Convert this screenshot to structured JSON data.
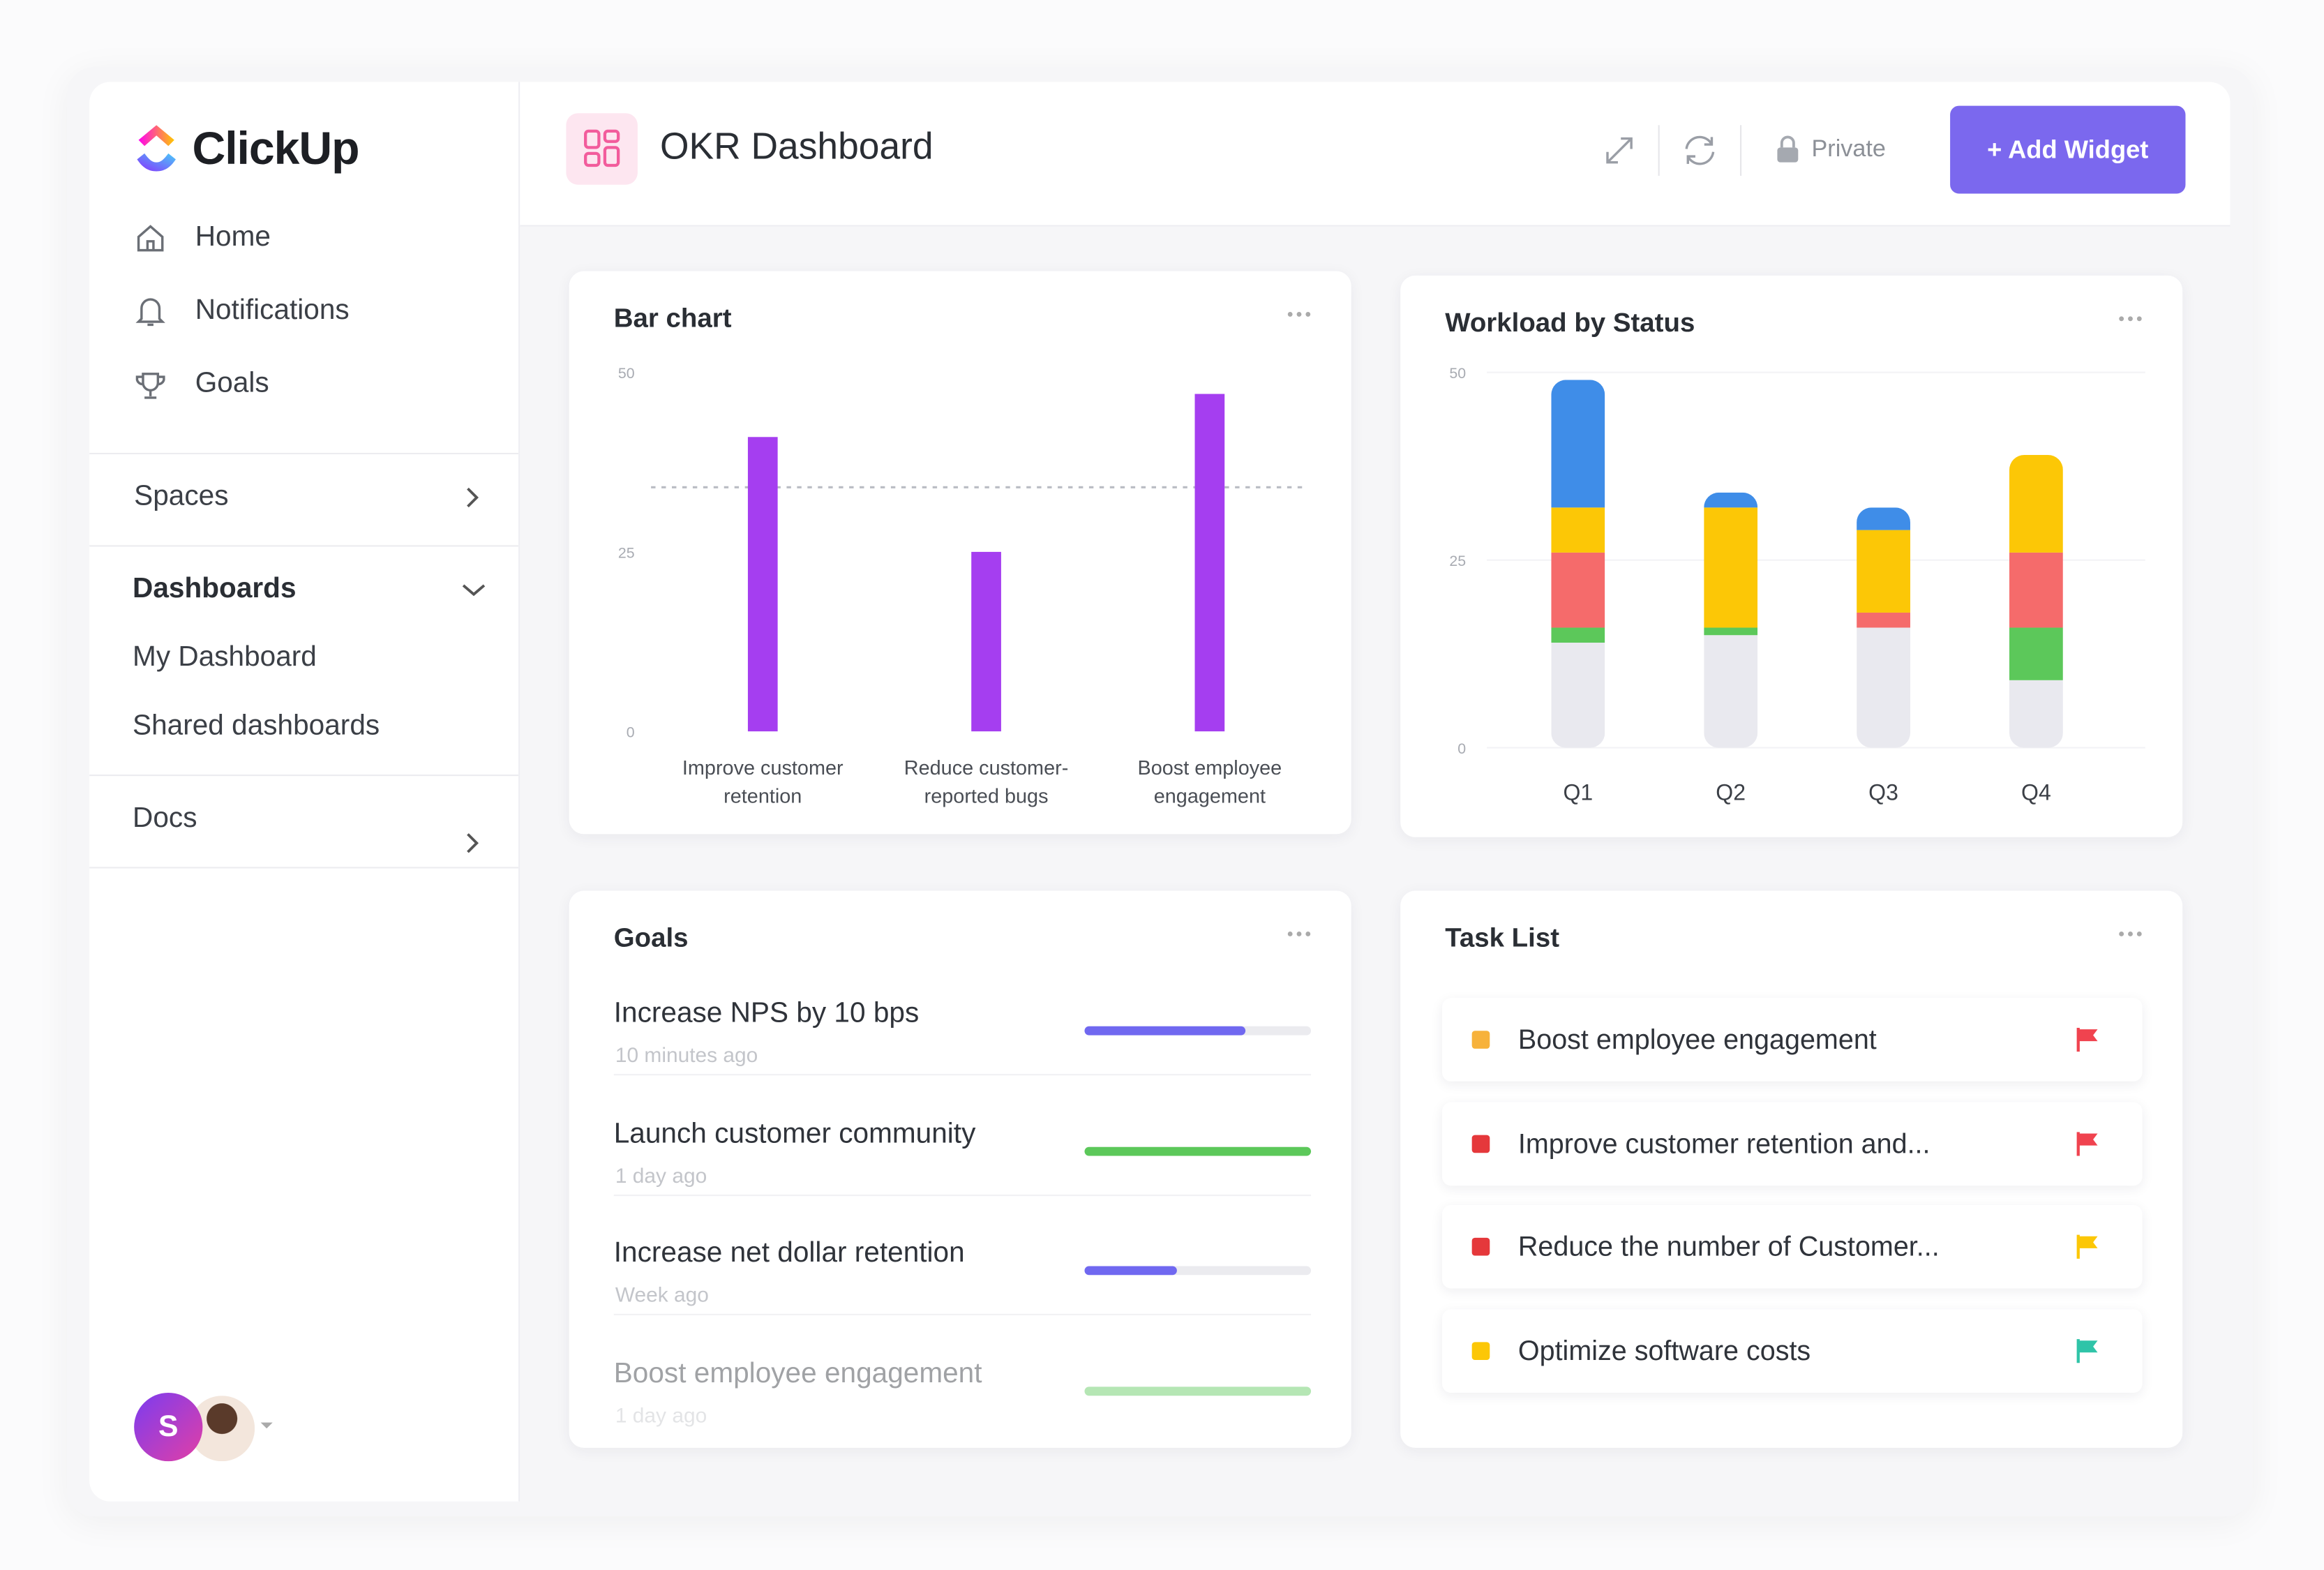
{
  "sidebar": {
    "logo": "ClickUp",
    "nav": [
      "Home",
      "Notifications",
      "Goals"
    ],
    "spaces": "Spaces",
    "dashboards": {
      "title": "Dashboards",
      "items": [
        "My Dashboard",
        "Shared dashboards"
      ]
    },
    "docs": "Docs",
    "avatar": "S"
  },
  "header": {
    "title": "OKR Dashboard",
    "privacy": "Private",
    "add_button": "+ Add Widget"
  },
  "bar_chart": {
    "type": "bar",
    "title": "Bar chart",
    "categories": [
      "Improve customer retention",
      "Reduce customer-reported bugs",
      "Boost employee engagement"
    ],
    "values": [
      41,
      25,
      47
    ],
    "color": "#a53ef0",
    "target": 34,
    "ylim": [
      0,
      50
    ],
    "yticks": [
      0,
      25,
      50
    ],
    "grid": false
  },
  "workload": {
    "type": "stacked_bar",
    "title": "Workload by Status",
    "categories": [
      "Q1",
      "Q2",
      "Q3",
      "Q4"
    ],
    "series": [
      {
        "color": "#e9e9ef",
        "values": [
          14,
          15,
          16,
          9
        ]
      },
      {
        "color": "#5cc85a",
        "values": [
          2,
          1,
          0,
          7
        ]
      },
      {
        "color": "#f56b6b",
        "values": [
          10,
          0,
          2,
          10
        ]
      },
      {
        "color": "#fcc706",
        "values": [
          6,
          16,
          11,
          13
        ]
      },
      {
        "color": "#3f8de8",
        "values": [
          17,
          2,
          3,
          0
        ]
      }
    ],
    "ylim": [
      0,
      50
    ],
    "yticks": [
      0,
      25,
      50
    ],
    "grid": true
  },
  "goals": {
    "title": "Goals",
    "items": [
      {
        "name": "Increase NPS by 10 bps",
        "time": "10 minutes ago",
        "progress": 71,
        "color": "#7068f0"
      },
      {
        "name": "Launch customer community",
        "time": "1 day ago",
        "progress": 100,
        "color": "#5cc85a"
      },
      {
        "name": "Increase net dollar retention",
        "time": "Week ago",
        "progress": 41,
        "color": "#7068f0"
      },
      {
        "name": "Boost employee engagement",
        "time": "1 day ago",
        "progress": 100,
        "color": "#5cc85a"
      }
    ]
  },
  "task_list": {
    "title": "Task List",
    "items": [
      {
        "name": "Boost employee engagement",
        "status_color": "#f7b23b",
        "flag_color": "#f0434f"
      },
      {
        "name": "Improve customer retention and...",
        "status_color": "#e5383b",
        "flag_color": "#f0434f"
      },
      {
        "name": "Reduce the number of Customer...",
        "status_color": "#e5383b",
        "flag_color": "#fcc706"
      },
      {
        "name": "Optimize software costs",
        "status_color": "#fcc706",
        "flag_color": "#2fc4a8"
      }
    ]
  }
}
